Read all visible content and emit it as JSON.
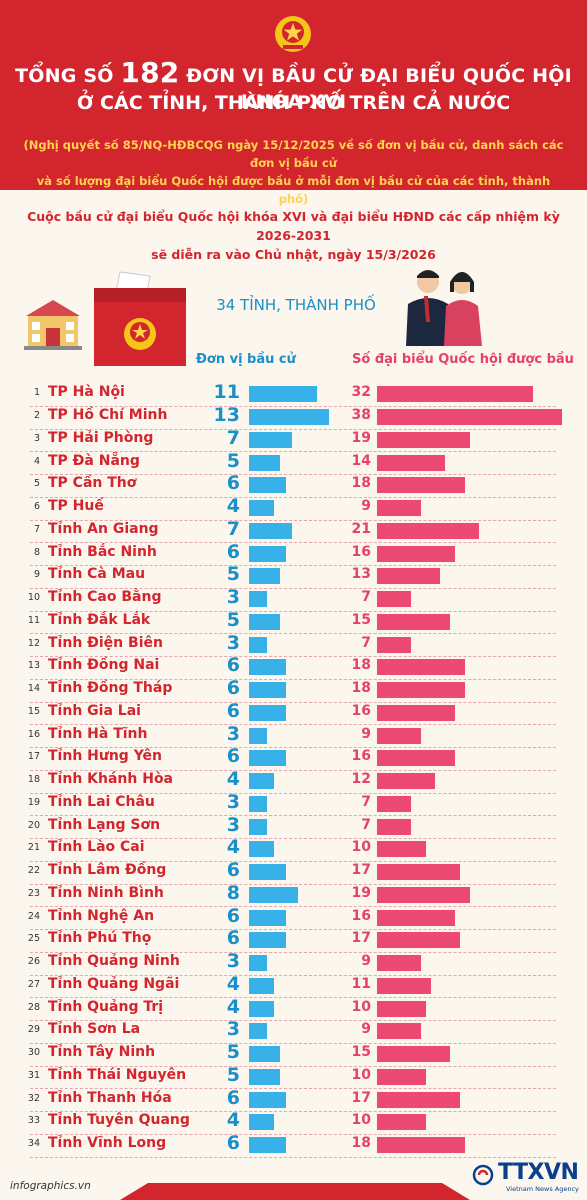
{
  "header": {
    "title_prefix": "TỔNG SỐ",
    "title_number": "182",
    "title_suffix": "ĐƠN VỊ BẦU CỬ ĐẠI BIỂU QUỐC HỘI KHÓA XVI",
    "title_line2": "Ở CÁC TỈNH, THÀNH PHỐ TRÊN CẢ NƯỚC",
    "subtitle_line1": "(Nghị quyết số 85/NQ-HĐBCQG ngày 15/12/2025 về số đơn vị bầu cử, danh sách các đơn vị bầu cử",
    "subtitle_line2": "và số lượng đại biểu Quốc hội được bầu ở mỗi đơn vị bầu cử của các tỉnh, thành phố)"
  },
  "intro": {
    "line1": "Cuộc bầu cử đại biểu Quốc hội khóa XVI và đại biểu HĐND các cấp nhiệm kỳ 2026-2031",
    "line2": "sẽ diễn ra vào Chủ nhật, ngày 15/3/2026"
  },
  "province_count": "34 TỈNH, THÀNH PHỐ",
  "footer": {
    "website": "infographics.vn",
    "logo": "TTXVN",
    "logo_tagline": "Vietnam News Agency"
  },
  "colors": {
    "red": "#d3252e",
    "blue": "#38b1e8",
    "pink": "#ec4a73",
    "gold": "#ffd34d"
  },
  "chart_data": {
    "type": "bar",
    "series": [
      {
        "name": "Đơn vị bầu cử",
        "values": [
          11,
          13,
          7,
          5,
          6,
          4,
          7,
          6,
          5,
          3,
          5,
          3,
          6,
          6,
          6,
          3,
          6,
          4,
          3,
          3,
          4,
          6,
          8,
          6,
          6,
          3,
          4,
          4,
          3,
          5,
          5,
          6,
          4,
          6
        ]
      },
      {
        "name": "Số đại biểu Quốc hội được bầu",
        "values": [
          32,
          38,
          19,
          14,
          18,
          9,
          21,
          16,
          13,
          7,
          15,
          7,
          18,
          18,
          16,
          9,
          16,
          12,
          7,
          7,
          10,
          17,
          19,
          16,
          17,
          9,
          11,
          10,
          9,
          15,
          10,
          17,
          10,
          18
        ]
      }
    ],
    "categories": [
      "TP Hà Nội",
      "TP Hồ Chí Minh",
      "TP Hải Phòng",
      "TP Đà Nẵng",
      "TP Cần Thơ",
      "TP Huế",
      "Tỉnh An Giang",
      "Tỉnh Bắc Ninh",
      "Tỉnh Cà Mau",
      "Tỉnh Cao Bằng",
      "Tỉnh Đắk Lắk",
      "Tỉnh Điện Biên",
      "Tỉnh Đồng Nai",
      "Tỉnh Đồng Tháp",
      "Tỉnh Gia Lai",
      "Tỉnh Hà Tĩnh",
      "Tỉnh Hưng Yên",
      "Tỉnh Khánh Hòa",
      "Tỉnh Lai Châu",
      "Tỉnh Lạng Sơn",
      "Tỉnh Lào Cai",
      "Tỉnh Lâm Đồng",
      "Tỉnh Ninh Bình",
      "Tỉnh Nghệ An",
      "Tỉnh Phú Thọ",
      "Tỉnh Quảng Ninh",
      "Tỉnh Quảng Ngãi",
      "Tỉnh Quảng Trị",
      "Tỉnh Sơn La",
      "Tỉnh Tây Ninh",
      "Tỉnh Thái Nguyên",
      "Tỉnh Thanh Hóa",
      "Tỉnh Tuyên Quang",
      "Tỉnh Vĩnh Long"
    ],
    "index_labels": [
      "1",
      "2",
      "3",
      "4",
      "5",
      "6",
      "7",
      "8",
      "9",
      "10",
      "11",
      "12",
      "13",
      "14",
      "15",
      "16",
      "17",
      "18",
      "19",
      "20",
      "21",
      "22",
      "23",
      "24",
      "25",
      "26",
      "27",
      "28",
      "29",
      "30",
      "31",
      "32",
      "33",
      "34"
    ]
  }
}
